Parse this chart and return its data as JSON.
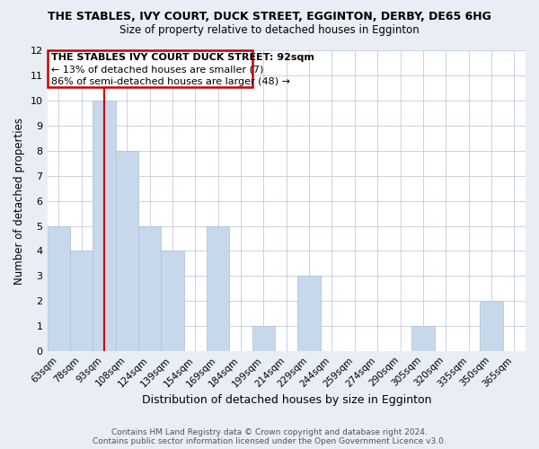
{
  "title": "THE STABLES, IVY COURT, DUCK STREET, EGGINTON, DERBY, DE65 6HG",
  "subtitle": "Size of property relative to detached houses in Egginton",
  "xlabel": "Distribution of detached houses by size in Egginton",
  "ylabel": "Number of detached properties",
  "bar_color": "#c8d8eb",
  "bar_edge_color": "#a8c0d8",
  "vline_color": "#cc0000",
  "vline_x_index": 2,
  "bins": [
    "63sqm",
    "78sqm",
    "93sqm",
    "108sqm",
    "124sqm",
    "139sqm",
    "154sqm",
    "169sqm",
    "184sqm",
    "199sqm",
    "214sqm",
    "229sqm",
    "244sqm",
    "259sqm",
    "274sqm",
    "290sqm",
    "305sqm",
    "320sqm",
    "335sqm",
    "350sqm",
    "365sqm"
  ],
  "values": [
    5,
    4,
    10,
    8,
    5,
    4,
    0,
    5,
    0,
    1,
    0,
    3,
    0,
    0,
    0,
    0,
    1,
    0,
    0,
    2,
    0
  ],
  "ylim": [
    0,
    12
  ],
  "yticks": [
    0,
    1,
    2,
    3,
    4,
    5,
    6,
    7,
    8,
    9,
    10,
    11,
    12
  ],
  "annotation_title": "THE STABLES IVY COURT DUCK STREET: 92sqm",
  "annotation_line1": "← 13% of detached houses are smaller (7)",
  "annotation_line2": "86% of semi-detached houses are larger (48) →",
  "footer1": "Contains HM Land Registry data © Crown copyright and database right 2024.",
  "footer2": "Contains public sector information licensed under the Open Government Licence v3.0.",
  "bg_color": "#e8eef4",
  "plot_bg_color": "#ffffff",
  "grid_color": "#c0ccd8"
}
